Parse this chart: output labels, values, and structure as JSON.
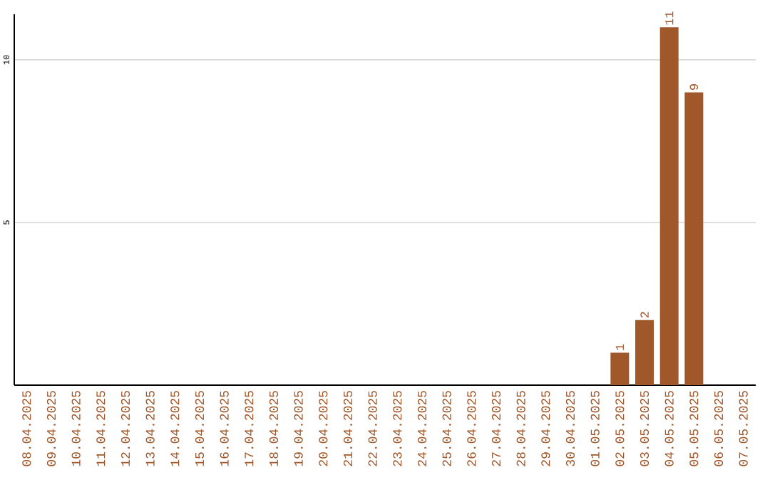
{
  "chart_data": {
    "type": "bar",
    "categories": [
      "08.04.2025",
      "09.04.2025",
      "10.04.2025",
      "11.04.2025",
      "12.04.2025",
      "13.04.2025",
      "14.04.2025",
      "15.04.2025",
      "16.04.2025",
      "17.04.2025",
      "18.04.2025",
      "19.04.2025",
      "20.04.2025",
      "21.04.2025",
      "22.04.2025",
      "23.04.2025",
      "24.04.2025",
      "25.04.2025",
      "26.04.2025",
      "27.04.2025",
      "28.04.2025",
      "29.04.2025",
      "30.04.2025",
      "01.05.2025",
      "02.05.2025",
      "03.05.2025",
      "04.05.2025",
      "05.05.2025",
      "06.05.2025",
      "07.05.2025"
    ],
    "values": [
      0,
      0,
      0,
      0,
      0,
      0,
      0,
      0,
      0,
      0,
      0,
      0,
      0,
      0,
      0,
      0,
      0,
      0,
      0,
      0,
      0,
      0,
      0,
      0,
      1,
      2,
      11,
      9,
      0,
      0
    ],
    "value_labels": [
      null,
      null,
      null,
      null,
      null,
      null,
      null,
      null,
      null,
      null,
      null,
      null,
      null,
      null,
      null,
      null,
      null,
      null,
      null,
      null,
      null,
      null,
      null,
      null,
      "1",
      "2",
      "11",
      "9",
      null,
      null
    ],
    "color": "#a0572a",
    "ylim": [
      0,
      11.4
    ],
    "yticks": [
      5,
      10
    ],
    "grid": "y"
  }
}
